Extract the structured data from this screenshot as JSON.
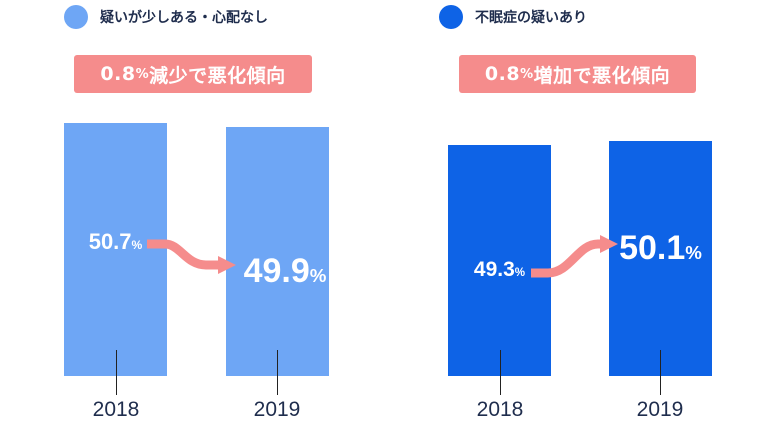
{
  "colors": {
    "light_blue": "#6ea6f5",
    "dark_blue": "#0e63e6",
    "banner": "#f58c8c",
    "text": "#1f2d4d"
  },
  "pct_symbol": "%",
  "panels": [
    {
      "legend": "疑いが少しある・心配なし",
      "banner_value": "0.8",
      "banner_text": "減少で悪化傾向",
      "bars": [
        {
          "year": "2018",
          "value_text": "50.7"
        },
        {
          "year": "2019",
          "value_text": "49.9"
        }
      ]
    },
    {
      "legend": "不眠症の疑いあり",
      "banner_value": "0.8",
      "banner_text": "増加で悪化傾向",
      "bars": [
        {
          "year": "2018",
          "value_text": "49.3"
        },
        {
          "year": "2019",
          "value_text": "50.1"
        }
      ]
    }
  ],
  "chart_data": [
    {
      "type": "bar",
      "categories": [
        "2018",
        "2019"
      ],
      "series": [
        {
          "name": "疑いが少しある・心配なし",
          "values": [
            50.7,
            49.9
          ]
        }
      ],
      "annotation": "0.8%減少で悪化傾向"
    },
    {
      "type": "bar",
      "categories": [
        "2018",
        "2019"
      ],
      "series": [
        {
          "name": "不眠症の疑いあり",
          "values": [
            49.3,
            50.1
          ]
        }
      ],
      "annotation": "0.8%増加で悪化傾向"
    }
  ]
}
